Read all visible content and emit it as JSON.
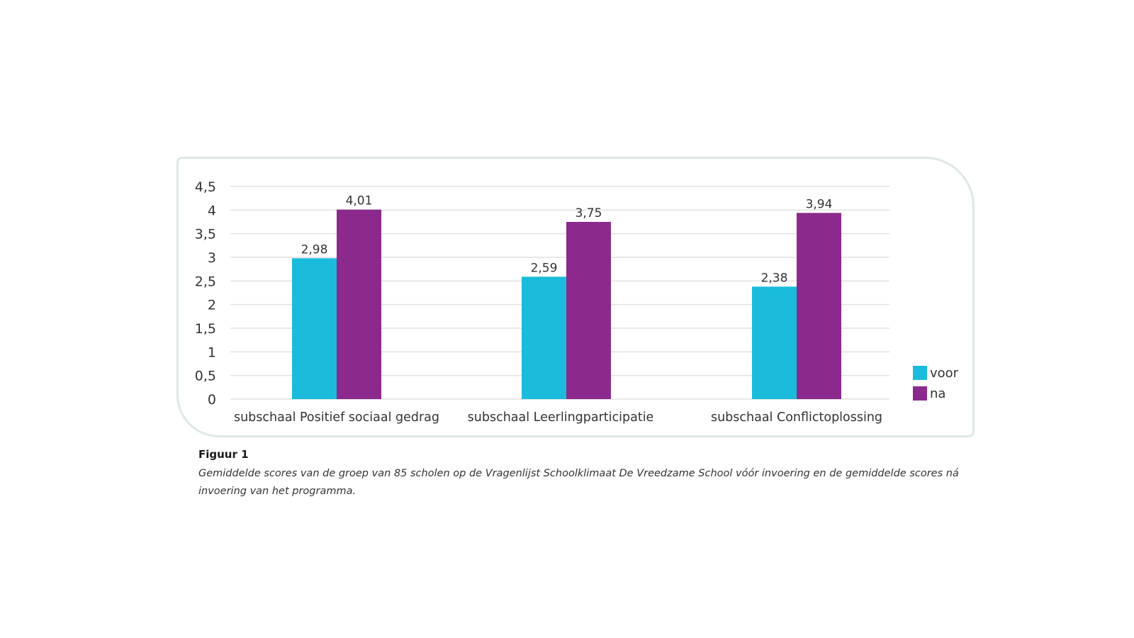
{
  "chart_data": {
    "type": "bar",
    "categories": [
      "subschaal Positief sociaal gedrag",
      "subschaal Leerlingparticipatie",
      "subschaal Conflictoplossing"
    ],
    "series": [
      {
        "name": "voor",
        "color": "#1bbcdb",
        "values": [
          2.98,
          2.59,
          2.38
        ],
        "labels": [
          "2,98",
          "2,59",
          "2,38"
        ]
      },
      {
        "name": "na",
        "color": "#8b2a8c",
        "values": [
          4.01,
          3.75,
          3.94
        ],
        "labels": [
          "4,01",
          "3,75",
          "3,94"
        ]
      }
    ],
    "ylim": [
      0,
      4.5
    ],
    "yticks": [
      0,
      0.5,
      1,
      1.5,
      2,
      2.5,
      3,
      3.5,
      4,
      4.5
    ],
    "ytick_labels": [
      "0",
      "0,5",
      "1",
      "1,5",
      "2",
      "2,5",
      "3",
      "3,5",
      "4",
      "4,5"
    ],
    "grid": true,
    "legend": "bottom-right"
  },
  "caption": {
    "title": "Figuur 1",
    "text": "Gemiddelde scores van de groep van 85 scholen op de Vragenlijst Schoolklimaat De Vreedzame School vóór invoering en de gemiddelde scores ná invoering van het programma."
  }
}
